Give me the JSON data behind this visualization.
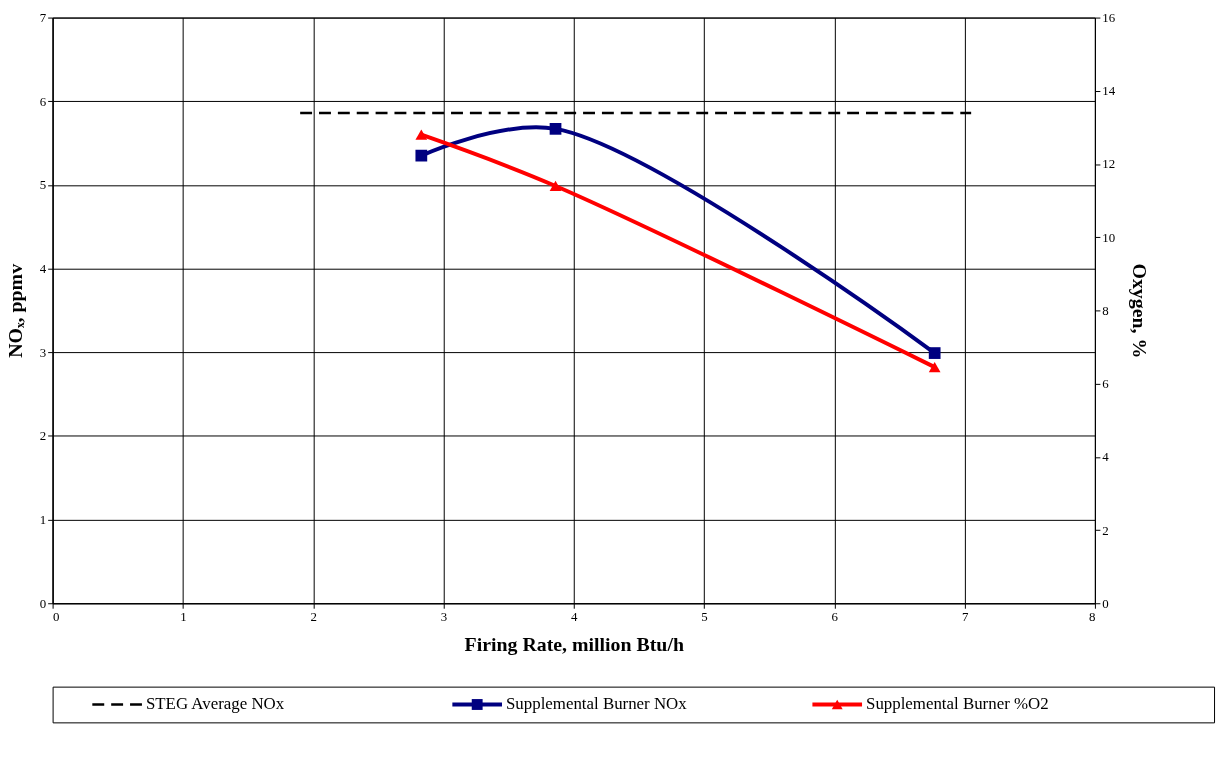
{
  "chart_data": {
    "type": "line",
    "xlabel": "Firing Rate, million Btu/h",
    "ylabel": "NOₓ, ppmv",
    "y2label": "Oxygen, %",
    "xlim": [
      0,
      8
    ],
    "xticks": [
      0,
      1,
      2,
      3,
      4,
      5,
      6,
      7,
      8
    ],
    "ylim": [
      0,
      7
    ],
    "yticks": [
      0,
      1,
      2,
      3,
      4,
      5,
      6,
      7
    ],
    "y2lim": [
      0,
      16
    ],
    "y2ticks": [
      0,
      2,
      4,
      6,
      8,
      10,
      12,
      14,
      16
    ],
    "grid": true,
    "legend": "bottom",
    "series": [
      {
        "name": "STEG Average NOx",
        "color": "#000000",
        "x": [
          1.9,
          7.05
        ],
        "values": [
          5.86,
          5.86
        ],
        "line_style": "dashed",
        "marker": "none"
      },
      {
        "name": "Supplemental Burner NOx",
        "color": "#000080",
        "x": [
          2.83,
          3.86,
          6.77
        ],
        "values": [
          5.35,
          5.67,
          2.99
        ],
        "line_style": "solid",
        "marker": "square"
      },
      {
        "name": "Supplemental Burner %O2",
        "color": "#ff0000",
        "x": [
          2.83,
          3.86,
          6.77
        ],
        "values": [
          12.8,
          11.4,
          6.45
        ],
        "line_style": "solid",
        "marker": "triangle",
        "axis": "y2"
      }
    ]
  }
}
